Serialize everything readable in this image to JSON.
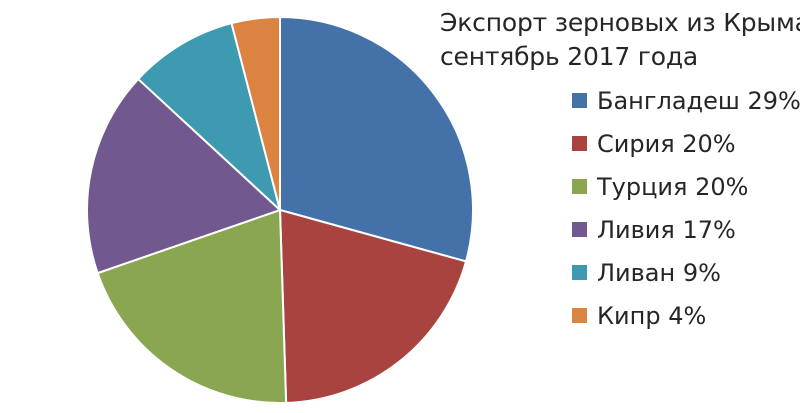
{
  "chart_data": {
    "type": "pie",
    "title_lines": [
      "Экспорт зерновых из Крыма,",
      "сентябрь 2017 года"
    ],
    "legend_position": "right",
    "slices": [
      {
        "label": "Бангладеш 29%",
        "value": 29,
        "color": "#4472a8"
      },
      {
        "label": "Сирия 20%",
        "value": 20,
        "color": "#a8433f"
      },
      {
        "label": "Турция 20%",
        "value": 20,
        "color": "#8aa651"
      },
      {
        "label": "Ливия 17%",
        "value": 17,
        "color": "#71598f"
      },
      {
        "label": "Ливан 9%",
        "value": 9,
        "color": "#3e9ab0"
      },
      {
        "label": "Кипр 4%",
        "value": 4,
        "color": "#db8442"
      }
    ]
  }
}
